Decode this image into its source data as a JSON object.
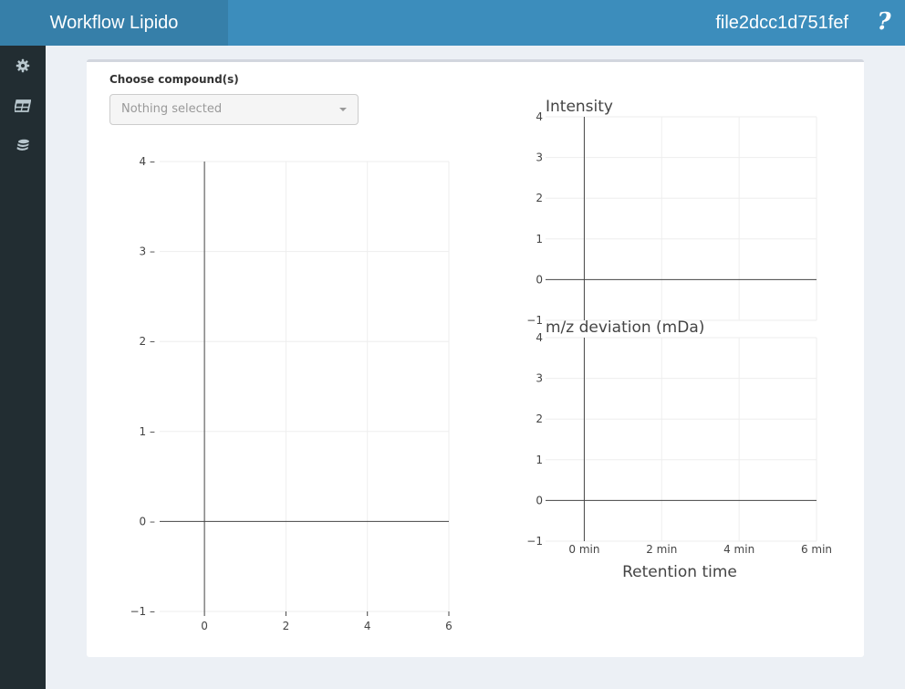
{
  "header": {
    "app_title": "Workflow Lipido",
    "file_name": "file2dcc1d751fef",
    "help_label": "?"
  },
  "sidebar": {
    "items": [
      {
        "icon": "gear-icon"
      },
      {
        "icon": "table-icon"
      },
      {
        "icon": "database-icon"
      }
    ]
  },
  "compound_select": {
    "label": "Choose compound(s)",
    "value": "Nothing selected"
  },
  "chart_data": [
    {
      "type": "scatter",
      "x_ticks": [
        "0",
        "2",
        "4",
        "6"
      ],
      "y_ticks": [
        "−1",
        "0",
        "1",
        "2",
        "3",
        "4"
      ],
      "xlim": [
        -1.1,
        6
      ],
      "ylim": [
        -1,
        4
      ],
      "series": [],
      "grid": true
    },
    {
      "type": "line",
      "title": "Intensity",
      "x_ticks": [
        "0 min",
        "2 min",
        "4 min",
        "6 min"
      ],
      "y_ticks": [
        "−1",
        "0",
        "1",
        "2",
        "3",
        "4"
      ],
      "xlim": [
        -1,
        6
      ],
      "ylim": [
        -1,
        4
      ],
      "series": [],
      "grid": true
    },
    {
      "type": "scatter",
      "title": "m/z deviation (mDa)",
      "xlabel": "Retention time",
      "x_ticks": [
        "0 min",
        "2 min",
        "4 min",
        "6 min"
      ],
      "y_ticks": [
        "−1",
        "0",
        "1",
        "2",
        "3",
        "4"
      ],
      "xlim": [
        -1,
        6
      ],
      "ylim": [
        -1,
        4
      ],
      "series": [],
      "grid": true
    }
  ]
}
